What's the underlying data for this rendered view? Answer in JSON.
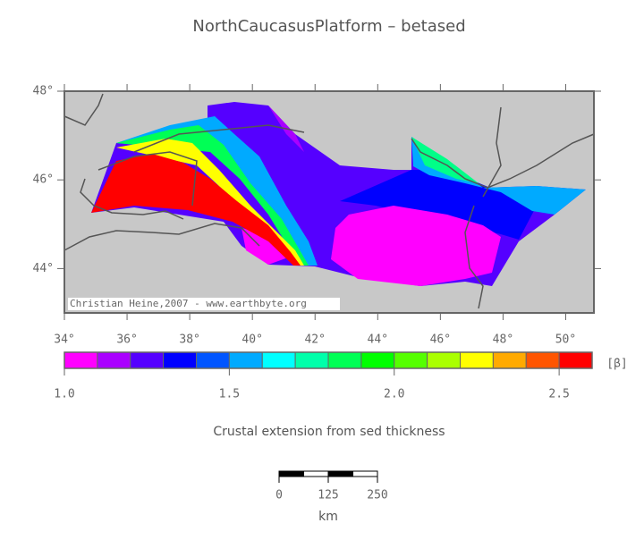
{
  "title": "NorthCaucasusPlatform – betased",
  "credit": "Christian Heine,2007 - www.earthbyte.org",
  "map": {
    "lonlim": [
      34,
      50.9
    ],
    "latlim": [
      43,
      48
    ],
    "lon_ticks": [
      {
        "value": 34,
        "label": "34°"
      },
      {
        "value": 36,
        "label": "36°"
      },
      {
        "value": 38,
        "label": "38°"
      },
      {
        "value": 40,
        "label": "40°"
      },
      {
        "value": 42,
        "label": "42°"
      },
      {
        "value": 44,
        "label": "44°"
      },
      {
        "value": 46,
        "label": "46°"
      },
      {
        "value": 48,
        "label": "48°"
      },
      {
        "value": 50,
        "label": "50°"
      }
    ],
    "lat_ticks": [
      {
        "value": 44,
        "label": "44°"
      },
      {
        "value": 46,
        "label": "46°"
      },
      {
        "value": 48,
        "label": "48°"
      }
    ]
  },
  "colorbar": {
    "range": [
      1,
      2.6
    ],
    "colors": [
      "#ff00ff",
      "#aa00ff",
      "#5500ff",
      "#0000ff",
      "#0055ff",
      "#00aaff",
      "#00ffff",
      "#00ffaa",
      "#00ff55",
      "#00ff00",
      "#55ff00",
      "#aaff00",
      "#ffff00",
      "#ffaa00",
      "#ff5500",
      "#ff0000"
    ],
    "ticks": [
      {
        "value": 1,
        "label": "1.0"
      },
      {
        "value": 1.5,
        "label": "1.5"
      },
      {
        "value": 2,
        "label": "2.0"
      },
      {
        "value": 2.5,
        "label": "2.5"
      }
    ],
    "unit": "[β]",
    "caption": "Crustal extension from sed thickness"
  },
  "scalebar": {
    "ticks": [
      0,
      125,
      250
    ],
    "unit": "km"
  }
}
